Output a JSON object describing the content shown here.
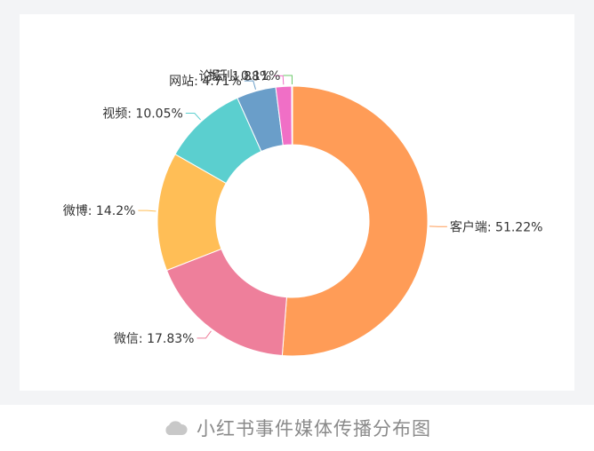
{
  "chart_data": {
    "type": "pie",
    "title": "",
    "donut": true,
    "slices": [
      {
        "label": "客户端",
        "value": 51.22,
        "display": "客户端: 51.22%",
        "color": "#ff9c57"
      },
      {
        "label": "微信",
        "value": 17.83,
        "display": "微信: 17.83%",
        "color": "#ee7f9b"
      },
      {
        "label": "微博",
        "value": 14.2,
        "display": "微博: 14.2%",
        "color": "#ffbe56"
      },
      {
        "label": "视频",
        "value": 10.05,
        "display": "视频: 10.05%",
        "color": "#5bcfcf"
      },
      {
        "label": "网站",
        "value": 4.71,
        "display": "网站: 4.71%",
        "color": "#6a9ec9"
      },
      {
        "label": "论坛",
        "value": 1.88,
        "display": "论坛: 1.88%",
        "color": "#f06fc6"
      },
      {
        "label": "报刊",
        "value": 0.11,
        "display": "报刊: 0.11%",
        "color": "#6cc96a"
      }
    ]
  },
  "caption": {
    "text": "小红书事件媒体传播分布图",
    "icon": "cloud-icon"
  }
}
